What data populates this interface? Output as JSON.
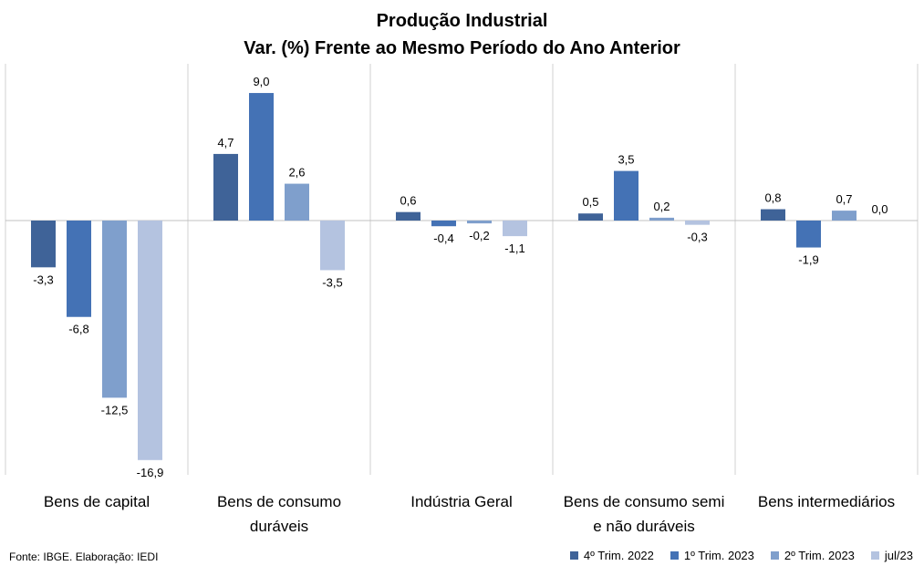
{
  "chart_data": {
    "type": "bar",
    "title": "Produção Industrial",
    "subtitle": "Var. (%)  Frente ao Mesmo Período do Ano Anterior",
    "categories": [
      [
        "Bens de capital"
      ],
      [
        "Bens de consumo",
        "duráveis"
      ],
      [
        "Indústria Geral"
      ],
      [
        "Bens de consumo semi",
        "e não duráveis"
      ],
      [
        "Bens intermediários"
      ]
    ],
    "series": [
      {
        "name": "4º Trim. 2022",
        "color": "#3f6398",
        "values": [
          -3.3,
          4.7,
          0.6,
          0.5,
          0.8
        ],
        "labels": [
          "-3,3",
          "4,7",
          "0,6",
          "0,5",
          "0,8"
        ]
      },
      {
        "name": "1º Trim. 2023",
        "color": "#4472b5",
        "values": [
          -6.8,
          9.0,
          -0.4,
          3.5,
          -1.9
        ],
        "labels": [
          "-6,8",
          "9,0",
          "-0,4",
          "3,5",
          "-1,9"
        ]
      },
      {
        "name": "2º Trim. 2023",
        "color": "#7f9fcc",
        "values": [
          -12.5,
          2.6,
          -0.2,
          0.2,
          0.7
        ],
        "labels": [
          "-12,5",
          "2,6",
          "-0,2",
          "0,2",
          "0,7"
        ]
      },
      {
        "name": "jul/23",
        "color": "#b4c3e0",
        "values": [
          -16.9,
          -3.5,
          -1.1,
          -0.3,
          0.0
        ],
        "labels": [
          "-16,9",
          "-3,5",
          "-1,1",
          "-0,3",
          "0,0"
        ]
      }
    ],
    "ylim": [
      -18,
      11
    ],
    "grid": false,
    "legend_position": "bottom-right",
    "source_note": "Fonte: IBGE. Elaboração: IEDI"
  }
}
